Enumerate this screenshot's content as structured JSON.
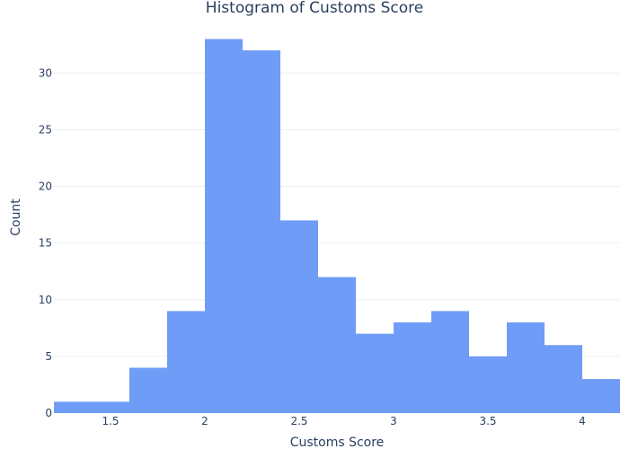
{
  "chart_data": {
    "type": "bar",
    "title": "Histogram of Customs Score",
    "xlabel": "Customs Score",
    "ylabel": "Count",
    "bin_edges": [
      1.2,
      1.4,
      1.6,
      1.8,
      2.0,
      2.2,
      2.4,
      2.6,
      2.8,
      3.0,
      3.2,
      3.4,
      3.6,
      3.8,
      4.0,
      4.2
    ],
    "values": [
      1,
      1,
      4,
      9,
      33,
      32,
      17,
      12,
      7,
      8,
      9,
      5,
      8,
      6,
      3
    ],
    "xlim": [
      1.2,
      4.2
    ],
    "ylim": [
      0,
      34.7
    ],
    "xticks": [
      1.5,
      2,
      2.5,
      3,
      3.5,
      4
    ],
    "xtick_labels": [
      "1.5",
      "2",
      "2.5",
      "3",
      "3.5",
      "4"
    ],
    "yticks": [
      0,
      5,
      10,
      15,
      20,
      25,
      30
    ],
    "ytick_labels": [
      "0",
      "5",
      "10",
      "15",
      "20",
      "25",
      "30"
    ],
    "grid": true,
    "bar_color": "#6f9cf6"
  }
}
